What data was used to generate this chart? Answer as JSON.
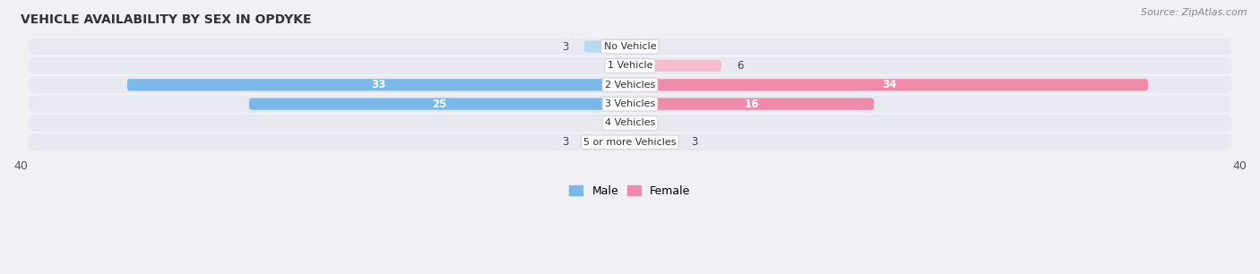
{
  "title": "VEHICLE AVAILABILITY BY SEX IN OPDYKE",
  "source": "Source: ZipAtlas.com",
  "categories": [
    "No Vehicle",
    "1 Vehicle",
    "2 Vehicles",
    "3 Vehicles",
    "4 Vehicles",
    "5 or more Vehicles"
  ],
  "male_values": [
    3,
    0,
    33,
    25,
    0,
    3
  ],
  "female_values": [
    0,
    6,
    34,
    16,
    0,
    3
  ],
  "male_color": "#7ab8e8",
  "female_color": "#f08aaa",
  "male_color_light": "#b8d9f0",
  "female_color_light": "#f7bcd0",
  "male_label": "Male",
  "female_label": "Female",
  "xlim": [
    -40,
    40
  ],
  "bar_height": 0.62,
  "background_color": "#f0f0f5",
  "row_bg_color": "#e8e8f0",
  "title_fontsize": 10,
  "source_fontsize": 8,
  "label_fontsize": 9,
  "value_fontsize": 8.5,
  "category_fontsize": 8,
  "legend_fontsize": 9
}
